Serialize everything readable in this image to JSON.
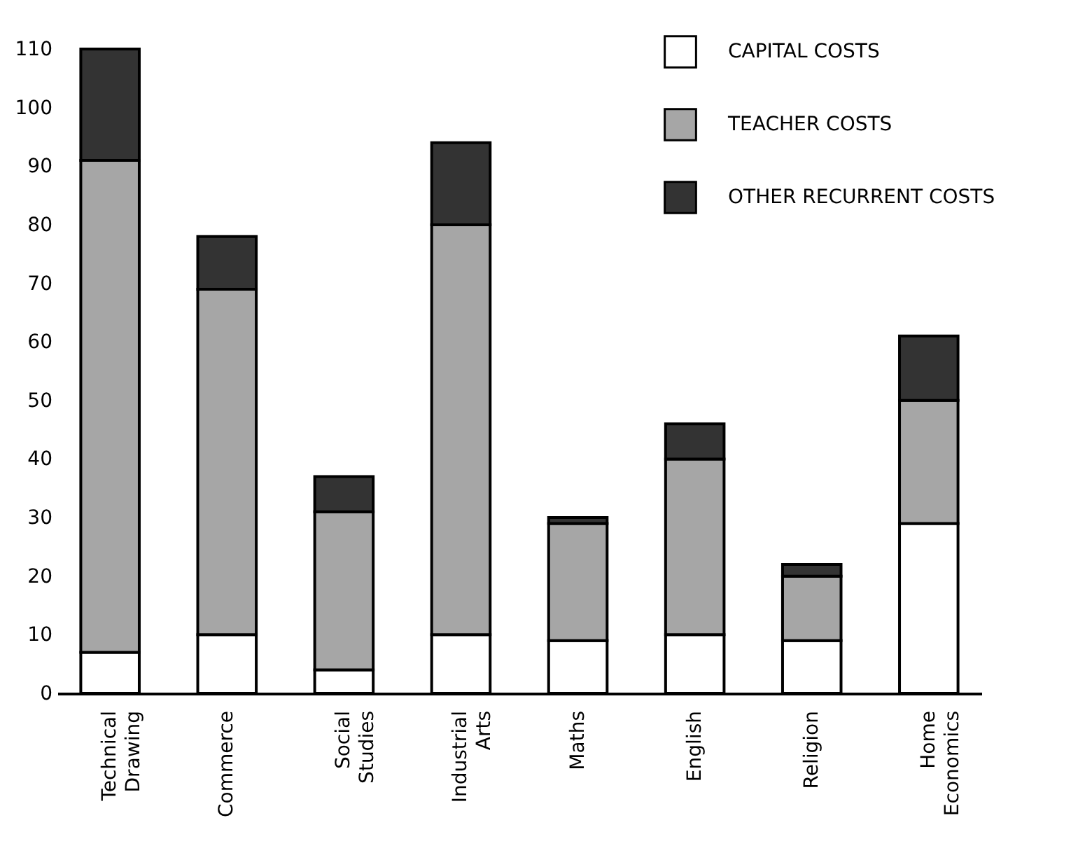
{
  "chart_data": {
    "type": "bar",
    "stacked": true,
    "categories": [
      "Technical Drawing",
      "Commerce",
      "Social Studies",
      "Industrial Arts",
      "Maths",
      "English",
      "Religion",
      "Home Economics"
    ],
    "series": [
      {
        "name": "CAPITAL COSTS",
        "color": "#ffffff",
        "values": [
          7,
          10,
          4,
          10,
          9,
          10,
          9,
          29
        ]
      },
      {
        "name": "TEACHER COSTS",
        "color": "#a6a6a6",
        "values": [
          84,
          59,
          27,
          70,
          20,
          30,
          11,
          21
        ]
      },
      {
        "name": "OTHER RECURRENT COSTS",
        "color": "#333333",
        "values": [
          19,
          9,
          6,
          14,
          1,
          6,
          2,
          11
        ]
      }
    ],
    "ylim": [
      0,
      110
    ],
    "yticks": [
      0,
      10,
      20,
      30,
      40,
      50,
      60,
      70,
      80,
      90,
      100,
      110
    ],
    "legend": "top right",
    "grid": false
  }
}
